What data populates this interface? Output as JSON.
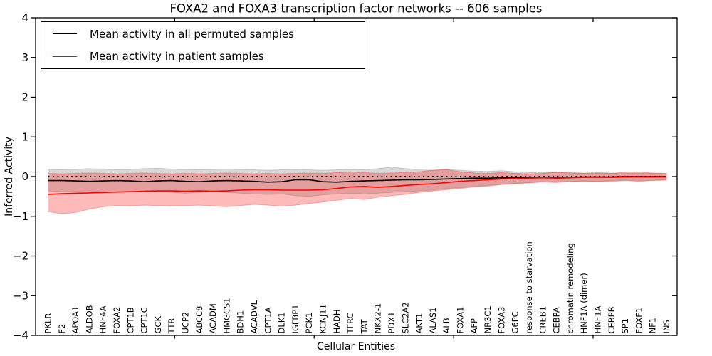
{
  "legend": {
    "items": [
      {
        "label": "Mean activity in all permuted samples",
        "color": "#000000"
      },
      {
        "label": "Mean activity in patient samples",
        "color": "#ff0000"
      }
    ]
  },
  "colors": {
    "permuted_line": "#000000",
    "patient_line": "#ff0000",
    "permuted_band": "rgba(0,0,0,0.15)",
    "patient_band": "rgba(255,0,0,0.27)",
    "zero_line": "#000000",
    "axis": "#000000"
  },
  "chart_data": {
    "type": "line",
    "title": "FOXA2 and FOXA3 transcription factor networks -- 606 samples",
    "xlabel": "Cellular Entities",
    "ylabel": "Inferred Activity",
    "ylim": [
      -4,
      4
    ],
    "y_ticks": [
      4,
      3,
      2,
      1,
      0,
      -1,
      -2,
      -3,
      -4
    ],
    "x_major_tick_positions": [
      10,
      20,
      30,
      40
    ],
    "grid": false,
    "legend_position": "upper-left",
    "zero_line": {
      "y": 0,
      "style": "dotted",
      "color": "#000000"
    },
    "categories": [
      "PKLR",
      "F2",
      "APOA1",
      "ALDOB",
      "HNF4A",
      "FOXA2",
      "CPT1B",
      "CPT1C",
      "GCK",
      "TTR",
      "UCP2",
      "ABCC8",
      "ACADM",
      "HMGCS1",
      "BDH1",
      "ACADVL",
      "CPT1A",
      "DLK1",
      "IGFBP1",
      "PCK1",
      "KCNJ11",
      "HADH",
      "TFRC",
      "TAT",
      "NKX2-1",
      "PDX1",
      "SLC2A2",
      "AKT1",
      "ALAS1",
      "ALB",
      "FOXA1",
      "AFP",
      "NR3C1",
      "FOXA3",
      "G6PC",
      "response to starvation",
      "CREB1",
      "CEBPA",
      "chromatin remodeling",
      "HNF1A (dimer)",
      "HNF1A",
      "CEBPB",
      "SP1",
      "FOXF1",
      "NF1",
      "INS"
    ],
    "series": [
      {
        "name": "Mean activity in all permuted samples",
        "color": "#000000",
        "band_color": "rgba(0,0,0,0.15)",
        "values": [
          -0.1,
          -0.1,
          -0.11,
          -0.12,
          -0.11,
          -0.1,
          -0.11,
          -0.13,
          -0.11,
          -0.1,
          -0.12,
          -0.13,
          -0.11,
          -0.1,
          -0.11,
          -0.12,
          -0.14,
          -0.13,
          -0.08,
          -0.08,
          -0.13,
          -0.14,
          -0.12,
          -0.11,
          -0.1,
          -0.09,
          -0.08,
          -0.08,
          -0.07,
          -0.06,
          -0.05,
          -0.04,
          -0.04,
          -0.03,
          -0.03,
          -0.02,
          -0.02,
          -0.03,
          -0.02,
          -0.01,
          -0.01,
          -0.01,
          0.0,
          0.0,
          0.0,
          0.0
        ],
        "band_upper": [
          0.18,
          0.17,
          0.18,
          0.2,
          0.19,
          0.17,
          0.18,
          0.2,
          0.21,
          0.19,
          0.18,
          0.17,
          0.18,
          0.19,
          0.18,
          0.17,
          0.16,
          0.17,
          0.18,
          0.17,
          0.16,
          0.17,
          0.18,
          0.17,
          0.2,
          0.24,
          0.2,
          0.17,
          0.16,
          0.18,
          0.16,
          0.14,
          0.13,
          0.15,
          0.12,
          0.11,
          0.1,
          0.11,
          0.1,
          0.09,
          0.1,
          0.09,
          0.08,
          0.09,
          0.08,
          0.08
        ],
        "band_lower": [
          -0.36,
          -0.38,
          -0.37,
          -0.36,
          -0.38,
          -0.4,
          -0.38,
          -0.37,
          -0.38,
          -0.4,
          -0.42,
          -0.4,
          -0.38,
          -0.4,
          -0.42,
          -0.44,
          -0.45,
          -0.44,
          -0.48,
          -0.5,
          -0.46,
          -0.44,
          -0.42,
          -0.44,
          -0.42,
          -0.4,
          -0.38,
          -0.36,
          -0.34,
          -0.3,
          -0.28,
          -0.25,
          -0.22,
          -0.2,
          -0.17,
          -0.15,
          -0.13,
          -0.14,
          -0.12,
          -0.11,
          -0.12,
          -0.1,
          -0.09,
          -0.1,
          -0.09,
          -0.08
        ]
      },
      {
        "name": "Mean activity in patient samples",
        "color": "#ff0000",
        "band_color": "rgba(255,0,0,0.27)",
        "values": [
          -0.45,
          -0.43,
          -0.42,
          -0.41,
          -0.4,
          -0.39,
          -0.38,
          -0.37,
          -0.36,
          -0.36,
          -0.37,
          -0.36,
          -0.37,
          -0.36,
          -0.34,
          -0.33,
          -0.33,
          -0.34,
          -0.34,
          -0.34,
          -0.33,
          -0.3,
          -0.26,
          -0.25,
          -0.27,
          -0.25,
          -0.22,
          -0.2,
          -0.18,
          -0.15,
          -0.12,
          -0.1,
          -0.08,
          -0.06,
          -0.05,
          -0.04,
          -0.03,
          -0.04,
          -0.03,
          -0.02,
          -0.02,
          -0.02,
          -0.01,
          -0.01,
          -0.01,
          -0.01
        ],
        "band_upper": [
          0.08,
          0.07,
          0.08,
          0.09,
          0.08,
          0.07,
          0.08,
          0.09,
          0.08,
          0.07,
          0.08,
          0.07,
          0.08,
          0.09,
          0.08,
          0.07,
          0.08,
          0.07,
          0.08,
          0.09,
          0.08,
          0.1,
          0.12,
          0.1,
          0.08,
          0.09,
          0.1,
          0.12,
          0.16,
          0.18,
          0.12,
          0.09,
          0.08,
          0.1,
          0.08,
          0.07,
          0.08,
          0.11,
          0.09,
          0.08,
          0.09,
          0.08,
          0.11,
          0.12,
          0.09,
          0.08
        ],
        "band_lower": [
          -0.88,
          -0.94,
          -0.9,
          -0.82,
          -0.76,
          -0.73,
          -0.74,
          -0.72,
          -0.73,
          -0.74,
          -0.73,
          -0.72,
          -0.74,
          -0.76,
          -0.73,
          -0.7,
          -0.72,
          -0.75,
          -0.72,
          -0.68,
          -0.64,
          -0.6,
          -0.55,
          -0.58,
          -0.52,
          -0.48,
          -0.45,
          -0.4,
          -0.36,
          -0.33,
          -0.3,
          -0.26,
          -0.24,
          -0.2,
          -0.18,
          -0.16,
          -0.14,
          -0.15,
          -0.13,
          -0.12,
          -0.13,
          -0.12,
          -0.1,
          -0.12,
          -0.1,
          -0.09
        ]
      }
    ]
  }
}
